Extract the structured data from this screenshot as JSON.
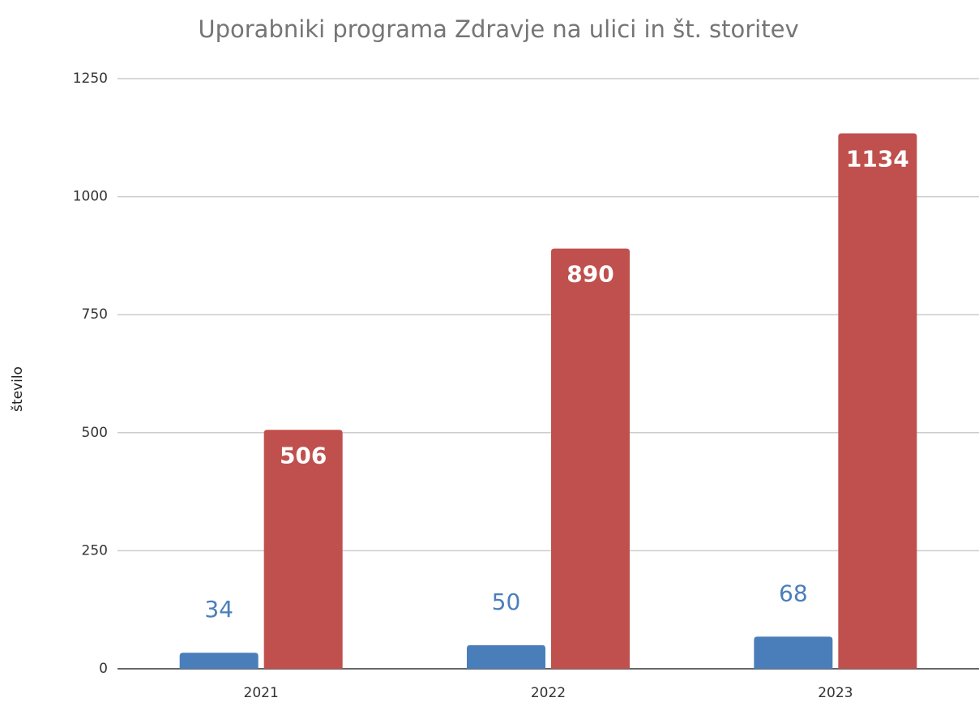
{
  "chart_data": {
    "type": "bar",
    "title": "Uporabniki programa Zdravje na ulici in št. storitev",
    "y_label": "število",
    "categories": [
      "2021",
      "2022",
      "2023"
    ],
    "series": [
      {
        "color": "#4a7ebb",
        "values": [
          34,
          50,
          68
        ]
      },
      {
        "color": "#c0504d",
        "values": [
          506,
          890,
          1134
        ]
      }
    ],
    "ylim": [
      0,
      1250
    ],
    "yticks": [
      0,
      250,
      500,
      750,
      1000,
      1250
    ],
    "grid": true
  }
}
